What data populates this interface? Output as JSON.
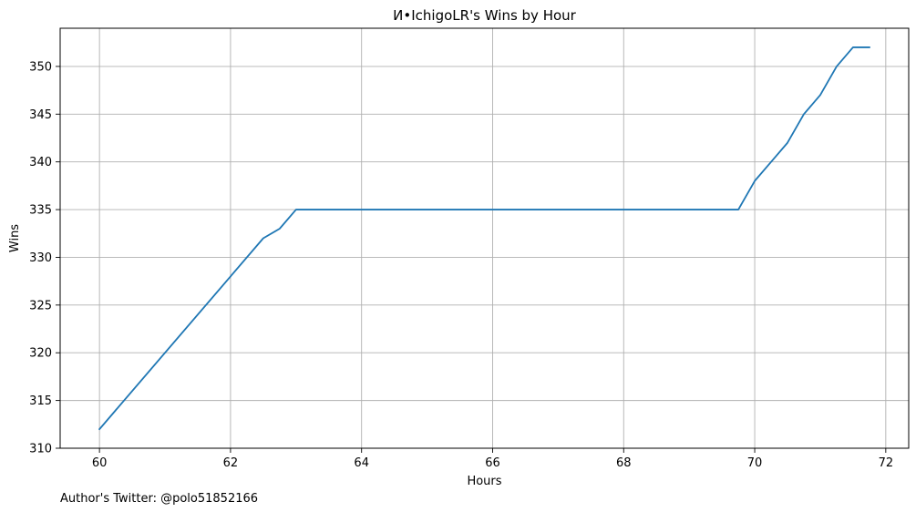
{
  "chart_data": {
    "type": "line",
    "title": "И•IchigoLR's Wins by Hour",
    "xlabel": "Hours",
    "ylabel": "Wins",
    "xlim": [
      59.4,
      72.35
    ],
    "ylim": [
      310,
      354
    ],
    "xticks": [
      60,
      62,
      64,
      66,
      68,
      70,
      72
    ],
    "yticks": [
      310,
      315,
      320,
      325,
      330,
      335,
      340,
      345,
      350
    ],
    "grid": true,
    "colors": {
      "line": "#1f77b4",
      "grid": "#b0b0b0",
      "axes": "#000000"
    },
    "series": [
      {
        "x": [
          60,
          62.5,
          62.75,
          63,
          69.75,
          70,
          70.25,
          70.5,
          70.75,
          71,
          71.25,
          71.5,
          71.75
        ],
        "y": [
          312,
          332,
          333,
          335,
          335,
          338,
          340,
          342,
          345,
          347,
          350,
          352,
          352
        ]
      }
    ]
  },
  "footer": {
    "credit": "Author's Twitter: @polo51852166"
  }
}
